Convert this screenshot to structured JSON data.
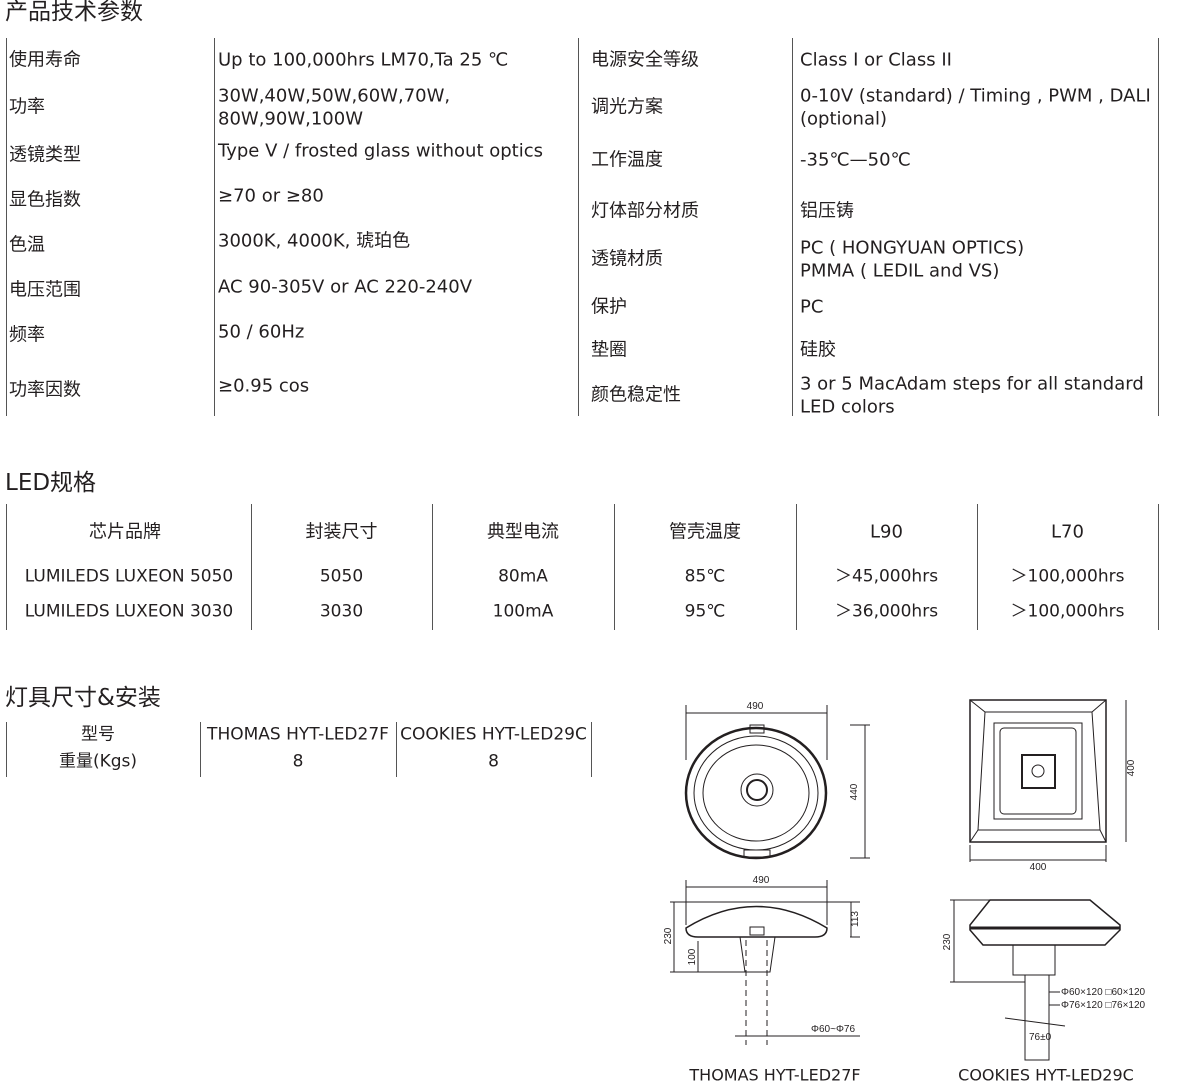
{
  "specs": {
    "title": "产品技术参数",
    "left": [
      {
        "label": "使用寿命",
        "value": [
          "Up to 100,000hrs LM70,Ta 25 ℃"
        ]
      },
      {
        "label": "功率",
        "value": [
          "30W,40W,50W,60W,70W,",
          "80W,90W,100W"
        ]
      },
      {
        "label": "透镜类型",
        "value": [
          "Type Ⅴ / frosted glass without optics"
        ]
      },
      {
        "label": "显色指数",
        "value": [
          "≥70 or ≥80"
        ]
      },
      {
        "label": "色温",
        "value": [
          "3000K, 4000K, 琥珀色"
        ]
      },
      {
        "label": "电压范围",
        "value": [
          "AC 90-305V or AC 220-240V"
        ]
      },
      {
        "label": "频率",
        "value": [
          "50 / 60Hz"
        ]
      },
      {
        "label": "功率因数",
        "value": [
          "≥0.95 cos"
        ]
      }
    ],
    "right": [
      {
        "label": "电源安全等级",
        "value": [
          "Class I or Class II"
        ]
      },
      {
        "label": "调光方案",
        "value": [
          "0-10V (standard) / Timing , PWM , DALI",
          "(optional)"
        ]
      },
      {
        "label": "工作温度",
        "value": [
          "-35℃—50℃"
        ]
      },
      {
        "label": "灯体部分材质",
        "value": [
          "铝压铸"
        ]
      },
      {
        "label": "透镜材质",
        "value": [
          "PC ( HONGYUAN OPTICS)",
          "PMMA ( LEDIL and VS)"
        ]
      },
      {
        "label": "保护",
        "value": [
          "PC"
        ]
      },
      {
        "label": "垫圈",
        "value": [
          "硅胶"
        ]
      },
      {
        "label": "颜色稳定性",
        "value": [
          "3 or 5 MacAdam steps for all standard",
          "LED colors"
        ]
      }
    ]
  },
  "led": {
    "title": "LED规格",
    "headers": [
      "芯片品牌",
      "封装尺寸",
      "典型电流",
      "管壳温度",
      "L90",
      "L70"
    ],
    "rows": [
      [
        "LUMILEDS LUXEON 5050",
        "5050",
        "80mA",
        "85℃",
        "＞45,000hrs",
        "＞100,000hrs"
      ],
      [
        "LUMILEDS LUXEON 3030",
        "3030",
        "100mA",
        "95℃",
        "＞36,000hrs",
        "＞100,000hrs"
      ]
    ]
  },
  "fixture": {
    "title": "灯具尺寸&安装",
    "rows": [
      [
        "型号",
        "THOMAS HYT-LED27F",
        "COOKIES HYT-LED29C"
      ],
      [
        "重量(Kgs)",
        "8",
        "8"
      ]
    ]
  },
  "drawings": {
    "thomas": {
      "caption": "THOMAS HYT-LED27F",
      "top_width": "490",
      "top_depth": "440",
      "side_width": "490",
      "height": "230",
      "head_height": "113",
      "spigot": "100",
      "pole": "Φ60~Φ76"
    },
    "cookies": {
      "caption": "COOKIES HYT-LED29C",
      "width": "400",
      "depth": "400",
      "height": "230",
      "pole1": "Φ60×120  □60×120",
      "pole2": "Φ76×120  □76×120",
      "spigot": "76±0"
    }
  }
}
